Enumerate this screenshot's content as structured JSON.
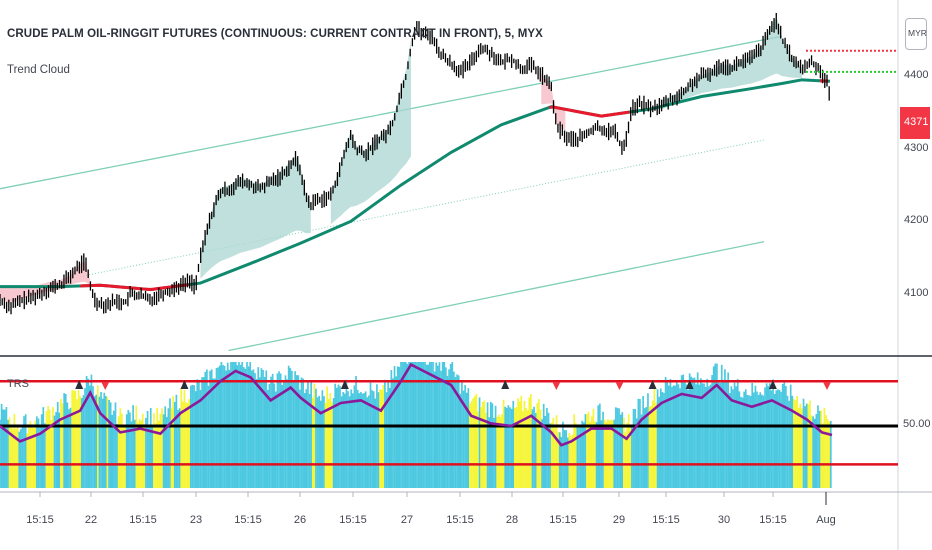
{
  "header": {
    "title": "CRUDE PALM OIL-RINGGIT FUTURES (CONTINUOUS: CURRENT CONTRACT IN FRONT), 5, MYX",
    "indicator_label": "Trend Cloud",
    "currency_badge": "MYR",
    "last_price": "4371"
  },
  "lower_pane": {
    "label": "TRS",
    "level_label": "50.00"
  },
  "colors": {
    "candle": "#000000",
    "ma_green": "#0f8a6e",
    "ma_red": "#e8182d",
    "cloud_teal": "#a9d6d0",
    "cloud_pink": "#f6b6c0",
    "channel": "#7fcfb8",
    "hist_cyan": "#4cc9e0",
    "hist_yellow": "#f5f53a",
    "trs_line": "#8a1a9a",
    "band_red": "#e01020",
    "arrow_up": "#2a2e39",
    "arrow_down": "#f23645"
  },
  "chart_data": [
    {
      "type": "candlestick",
      "title": "CRUDE PALM OIL-RINGGIT FUTURES (CONTINUOUS: CURRENT CONTRACT IN FRONT), 5, MYX",
      "y_ticks": [
        4100,
        4200,
        4300,
        4400
      ],
      "ylim": [
        4020,
        4505
      ],
      "x_ticks": [
        "15:15",
        "22",
        "15:15",
        "23",
        "15:15",
        "26",
        "15:15",
        "27",
        "15:15",
        "28",
        "15:15",
        "29",
        "15:15",
        "30",
        "15:15",
        "Aug"
      ],
      "last_price": 4371,
      "price_path": [
        [
          0,
          4092
        ],
        [
          10,
          4082
        ],
        [
          20,
          4090
        ],
        [
          30,
          4094
        ],
        [
          40,
          4100
        ],
        [
          50,
          4108
        ],
        [
          60,
          4112
        ],
        [
          70,
          4125
        ],
        [
          80,
          4140
        ],
        [
          85,
          4145
        ],
        [
          90,
          4112
        ],
        [
          95,
          4090
        ],
        [
          105,
          4085
        ],
        [
          115,
          4090
        ],
        [
          125,
          4088
        ],
        [
          130,
          4100
        ],
        [
          140,
          4098
        ],
        [
          150,
          4092
        ],
        [
          160,
          4100
        ],
        [
          170,
          4105
        ],
        [
          180,
          4112
        ],
        [
          190,
          4118
        ],
        [
          195,
          4110
        ],
        [
          200,
          4150
        ],
        [
          205,
          4180
        ],
        [
          210,
          4205
        ],
        [
          215,
          4225
        ],
        [
          220,
          4240
        ],
        [
          230,
          4245
        ],
        [
          240,
          4255
        ],
        [
          250,
          4250
        ],
        [
          260,
          4245
        ],
        [
          270,
          4255
        ],
        [
          280,
          4262
        ],
        [
          290,
          4278
        ],
        [
          295,
          4285
        ],
        [
          300,
          4270
        ],
        [
          305,
          4235
        ],
        [
          310,
          4222
        ],
        [
          315,
          4230
        ],
        [
          320,
          4230
        ],
        [
          330,
          4235
        ],
        [
          340,
          4275
        ],
        [
          345,
          4300
        ],
        [
          350,
          4318
        ],
        [
          355,
          4300
        ],
        [
          365,
          4292
        ],
        [
          375,
          4310
        ],
        [
          385,
          4320
        ],
        [
          390,
          4330
        ],
        [
          395,
          4350
        ],
        [
          400,
          4380
        ],
        [
          405,
          4400
        ],
        [
          410,
          4440
        ],
        [
          415,
          4470
        ],
        [
          420,
          4460
        ],
        [
          430,
          4455
        ],
        [
          440,
          4430
        ],
        [
          450,
          4418
        ],
        [
          460,
          4405
        ],
        [
          470,
          4420
        ],
        [
          480,
          4440
        ],
        [
          490,
          4432
        ],
        [
          500,
          4418
        ],
        [
          510,
          4425
        ],
        [
          520,
          4410
        ],
        [
          530,
          4415
        ],
        [
          540,
          4402
        ],
        [
          550,
          4385
        ],
        [
          555,
          4330
        ],
        [
          560,
          4325
        ],
        [
          565,
          4315
        ],
        [
          575,
          4312
        ],
        [
          585,
          4320
        ],
        [
          595,
          4330
        ],
        [
          605,
          4325
        ],
        [
          615,
          4322
        ],
        [
          620,
          4300
        ],
        [
          625,
          4315
        ],
        [
          630,
          4355
        ],
        [
          640,
          4362
        ],
        [
          650,
          4355
        ],
        [
          660,
          4360
        ],
        [
          670,
          4368
        ],
        [
          680,
          4375
        ],
        [
          690,
          4390
        ],
        [
          700,
          4400
        ],
        [
          710,
          4405
        ],
        [
          720,
          4415
        ],
        [
          730,
          4412
        ],
        [
          740,
          4420
        ],
        [
          750,
          4425
        ],
        [
          760,
          4440
        ],
        [
          770,
          4468
        ],
        [
          775,
          4478
        ],
        [
          780,
          4450
        ],
        [
          790,
          4425
        ],
        [
          800,
          4410
        ],
        [
          810,
          4420
        ],
        [
          820,
          4405
        ],
        [
          825,
          4390
        ],
        [
          828,
          4371
        ]
      ],
      "ma_path": [
        [
          0,
          4110
        ],
        [
          60,
          4110
        ],
        [
          100,
          4112
        ],
        [
          150,
          4106
        ],
        [
          200,
          4115
        ],
        [
          250,
          4142
        ],
        [
          300,
          4170
        ],
        [
          350,
          4200
        ],
        [
          400,
          4250
        ],
        [
          450,
          4295
        ],
        [
          500,
          4333
        ],
        [
          550,
          4358
        ],
        [
          600,
          4345
        ],
        [
          650,
          4355
        ],
        [
          700,
          4372
        ],
        [
          750,
          4383
        ],
        [
          780,
          4390
        ],
        [
          800,
          4395
        ],
        [
          828,
          4393
        ]
      ],
      "ma_red_segments": [
        [
          80,
          190
        ],
        [
          548,
          628
        ],
        [
          818,
          828
        ]
      ],
      "cloud_teal": [
        [
          200,
          310
        ],
        [
          330,
          410
        ],
        [
          660,
          800
        ]
      ],
      "cloud_pink": [
        [
          0,
          90
        ],
        [
          540,
          565
        ]
      ],
      "channel_upper": [
        [
          0,
          4245
        ],
        [
          780,
          4455
        ]
      ],
      "channel_mid": [
        [
          80,
          4124
        ],
        [
          762,
          4312
        ]
      ],
      "channel_lower": [
        [
          228,
          4022
        ],
        [
          762,
          4172
        ]
      ],
      "upper_dotted_red": 4435,
      "upper_dotted_green": 4406
    },
    {
      "type": "bar+line",
      "title": "TRS",
      "level_ticks": [
        50
      ],
      "ylim": [
        0,
        100
      ],
      "upper_band": 85,
      "mid_line": 50,
      "lower_band": 20,
      "trs_line": [
        [
          0,
          50
        ],
        [
          20,
          38
        ],
        [
          40,
          44
        ],
        [
          60,
          55
        ],
        [
          80,
          62
        ],
        [
          90,
          76
        ],
        [
          100,
          60
        ],
        [
          120,
          45
        ],
        [
          140,
          48
        ],
        [
          160,
          44
        ],
        [
          180,
          60
        ],
        [
          200,
          70
        ],
        [
          220,
          85
        ],
        [
          235,
          93
        ],
        [
          250,
          88
        ],
        [
          270,
          70
        ],
        [
          290,
          80
        ],
        [
          300,
          72
        ],
        [
          320,
          60
        ],
        [
          340,
          68
        ],
        [
          360,
          70
        ],
        [
          380,
          62
        ],
        [
          400,
          85
        ],
        [
          410,
          98
        ],
        [
          430,
          90
        ],
        [
          450,
          82
        ],
        [
          470,
          58
        ],
        [
          490,
          52
        ],
        [
          510,
          50
        ],
        [
          530,
          58
        ],
        [
          550,
          45
        ],
        [
          560,
          35
        ],
        [
          570,
          38
        ],
        [
          590,
          48
        ],
        [
          610,
          48
        ],
        [
          625,
          40
        ],
        [
          640,
          55
        ],
        [
          660,
          68
        ],
        [
          680,
          75
        ],
        [
          700,
          72
        ],
        [
          715,
          82
        ],
        [
          730,
          70
        ],
        [
          750,
          65
        ],
        [
          770,
          70
        ],
        [
          790,
          62
        ],
        [
          805,
          55
        ],
        [
          820,
          45
        ],
        [
          830,
          43
        ]
      ],
      "up_arrows_x": [
        79,
        184,
        344,
        504,
        651,
        688,
        771
      ],
      "down_arrows_x": [
        105,
        555,
        618,
        825
      ]
    }
  ]
}
